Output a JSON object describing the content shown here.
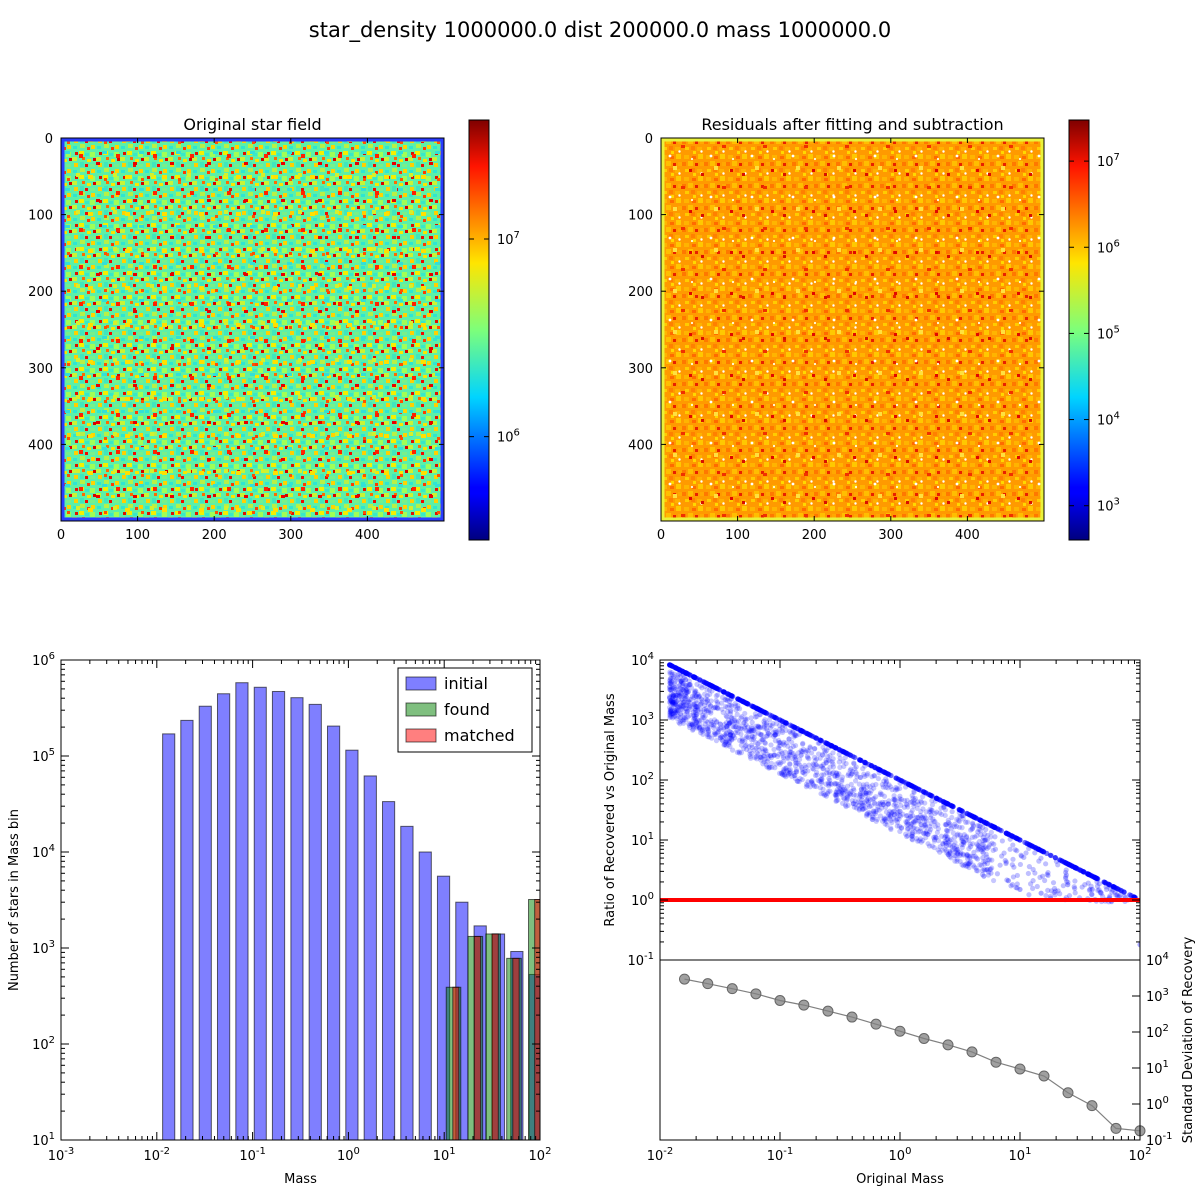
{
  "suptitle": "star_density 1000000.0 dist 200000.0 mass 1000000.0",
  "chart_data": [
    {
      "type": "heatmap",
      "title": "Original star field",
      "x_ticks": [
        "0",
        "100",
        "200",
        "300",
        "400"
      ],
      "y_ticks": [
        "0",
        "100",
        "200",
        "300",
        "400"
      ],
      "extent": [
        0,
        500
      ],
      "colormap": "jet",
      "colorbar": {
        "scale": "log",
        "ticks": [
          {
            "base": "10",
            "exp": "7",
            "value": 10000000
          },
          {
            "base": "10",
            "exp": "6",
            "value": 1000000
          }
        ],
        "range": [
          300000,
          40000000
        ]
      },
      "texture": "dense mix of cyan/green with yellow, orange and red speckles; dark blue border"
    },
    {
      "type": "heatmap",
      "title": "Residuals after fitting and subtraction",
      "x_ticks": [
        "0",
        "100",
        "200",
        "300",
        "400"
      ],
      "y_ticks": [
        "0",
        "100",
        "200",
        "300",
        "400"
      ],
      "extent": [
        0,
        500
      ],
      "colormap": "jet",
      "colorbar": {
        "scale": "log",
        "ticks": [
          {
            "base": "10",
            "exp": "7",
            "value": 10000000
          },
          {
            "base": "10",
            "exp": "6",
            "value": 1000000
          },
          {
            "base": "10",
            "exp": "5",
            "value": 100000
          },
          {
            "base": "10",
            "exp": "4",
            "value": 10000
          },
          {
            "base": "10",
            "exp": "3",
            "value": 1000
          }
        ],
        "range": [
          400,
          30000000
        ]
      },
      "texture": "mostly orange with red speckles and small white holes"
    },
    {
      "type": "bar",
      "xlabel": "Mass",
      "ylabel": "Number of stars in Mass bin",
      "xscale": "log",
      "yscale": "log",
      "xlim": [
        0.001,
        100
      ],
      "ylim": [
        10,
        1000000
      ],
      "x_ticks": [
        {
          "base": "10",
          "exp": "-3"
        },
        {
          "base": "10",
          "exp": "-2"
        },
        {
          "base": "10",
          "exp": "-1"
        },
        {
          "base": "10",
          "exp": "0"
        },
        {
          "base": "10",
          "exp": "1"
        },
        {
          "base": "10",
          "exp": "2"
        }
      ],
      "y_ticks": [
        {
          "base": "10",
          "exp": "1"
        },
        {
          "base": "10",
          "exp": "2"
        },
        {
          "base": "10",
          "exp": "3"
        },
        {
          "base": "10",
          "exp": "4"
        },
        {
          "base": "10",
          "exp": "5"
        },
        {
          "base": "10",
          "exp": "6"
        }
      ],
      "legend": "top-right",
      "series": [
        {
          "name": "initial",
          "color": "#0000ff",
          "bins": [
            [
              0.0115,
              0.0154,
              170000
            ],
            [
              0.0178,
              0.0239,
              235000
            ],
            [
              0.0277,
              0.0371,
              330000
            ],
            [
              0.043,
              0.0577,
              445000
            ],
            [
              0.0668,
              0.0896,
              580000
            ],
            [
              0.104,
              0.139,
              520000
            ],
            [
              0.161,
              0.216,
              470000
            ],
            [
              0.251,
              0.336,
              405000
            ],
            [
              0.389,
              0.522,
              345000
            ],
            [
              0.605,
              0.811,
              205000
            ],
            [
              0.939,
              1.26,
              115000
            ],
            [
              1.46,
              1.96,
              62000
            ],
            [
              2.27,
              3.04,
              33500
            ],
            [
              3.52,
              4.73,
              18500
            ],
            [
              5.48,
              7.34,
              10000
            ],
            [
              8.5,
              11.4,
              5600
            ],
            [
              13.2,
              17.7,
              3000
            ],
            [
              20.5,
              27.5,
              1700
            ],
            [
              31.9,
              42.7,
              1400
            ],
            [
              49.5,
              66.4,
              920
            ],
            [
              76.9,
              100,
              530
            ]
          ]
        },
        {
          "name": "found",
          "color": "#008000",
          "bins": [
            [
              10.5,
              14.9,
              390
            ],
            [
              17.7,
              25.2,
              1320
            ],
            [
              27.2,
              38.6,
              1400
            ],
            [
              44.9,
              63.8,
              780
            ],
            [
              75.9,
              100,
              3200
            ]
          ]
        },
        {
          "name": "matched",
          "color": "#ff0000",
          "bins": [
            [
              12.3,
              14.2,
              390
            ],
            [
              20.6,
              24.0,
              1320
            ],
            [
              31.5,
              36.7,
              1400
            ],
            [
              52.0,
              60.6,
              780
            ],
            [
              88.0,
              100,
              3200
            ]
          ]
        }
      ]
    },
    {
      "type": "scatter",
      "xlabel": "",
      "ylabel": "Ratio of Recovered vs Original Mass",
      "xscale": "log",
      "yscale": "log",
      "xlim": [
        0.01,
        100
      ],
      "ylim": [
        0.1,
        10000
      ],
      "y_ticks": [
        {
          "base": "10",
          "exp": "4"
        },
        {
          "base": "10",
          "exp": "3"
        },
        {
          "base": "10",
          "exp": "2"
        },
        {
          "base": "10",
          "exp": "1"
        },
        {
          "base": "10",
          "exp": "0"
        },
        {
          "base": "10",
          "exp": "-1"
        }
      ],
      "upper_envelope": "ratio = 100 / mass",
      "point_color": "#0000ff",
      "reference_line": {
        "y": 1,
        "color": "#ff0000"
      },
      "sample_points": [
        [
          0.012,
          8300
        ],
        [
          0.015,
          4500
        ],
        [
          0.02,
          2500
        ],
        [
          0.03,
          1600
        ],
        [
          0.05,
          900
        ],
        [
          0.08,
          600
        ],
        [
          0.1,
          420
        ],
        [
          0.15,
          260
        ],
        [
          0.2,
          180
        ],
        [
          0.3,
          120
        ],
        [
          0.5,
          70
        ],
        [
          0.8,
          40
        ],
        [
          1.0,
          30
        ],
        [
          1.5,
          18
        ],
        [
          2.0,
          11
        ],
        [
          3.0,
          7
        ],
        [
          5.0,
          2.5
        ],
        [
          8.0,
          2.1
        ],
        [
          10.0,
          1.5
        ],
        [
          15.0,
          1.3
        ],
        [
          25.0,
          1.8
        ],
        [
          40.0,
          1.5
        ],
        [
          100.0,
          0.18
        ]
      ]
    },
    {
      "type": "line",
      "xlabel": "Original Mass",
      "ylabel": "Standard Deviation of Recovery",
      "xscale": "log",
      "yscale": "log",
      "xlim": [
        0.01,
        100
      ],
      "ylim": [
        0.1,
        10000
      ],
      "x_ticks": [
        {
          "base": "10",
          "exp": "-2"
        },
        {
          "base": "10",
          "exp": "-1"
        },
        {
          "base": "10",
          "exp": "0"
        },
        {
          "base": "10",
          "exp": "1"
        },
        {
          "base": "10",
          "exp": "2"
        }
      ],
      "y_ticks_right": [
        {
          "base": "10",
          "exp": "4"
        },
        {
          "base": "10",
          "exp": "3"
        },
        {
          "base": "10",
          "exp": "2"
        },
        {
          "base": "10",
          "exp": "1"
        },
        {
          "base": "10",
          "exp": "0"
        },
        {
          "base": "10",
          "exp": "-1"
        }
      ],
      "color": "#808080",
      "x": [
        0.016,
        0.025,
        0.04,
        0.063,
        0.1,
        0.158,
        0.251,
        0.398,
        0.631,
        1.0,
        1.585,
        2.512,
        3.981,
        6.31,
        10.0,
        15.85,
        25.12,
        39.81,
        63.1,
        100.0
      ],
      "y": [
        2950,
        2200,
        1600,
        1150,
        750,
        560,
        380,
        260,
        165,
        105,
        66,
        44,
        28,
        14.5,
        9.4,
        6.0,
        2.05,
        0.9,
        0.21,
        0.18
      ]
    }
  ]
}
